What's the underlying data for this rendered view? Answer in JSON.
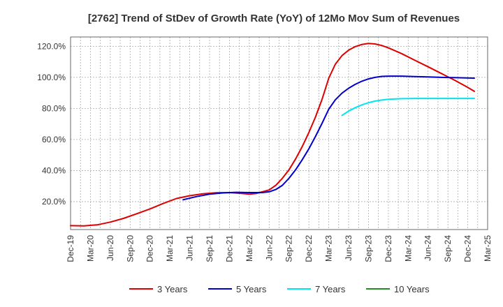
{
  "chart_data": {
    "type": "line",
    "title": "[2762]  Trend of StDev of Growth Rate (YoY) of 12Mo Mov Sum of Revenues",
    "xlabel": "",
    "ylabel": "",
    "ylim": [
      2,
      126
    ],
    "y_ticks": [
      {
        "value": 20,
        "label": "20.0%"
      },
      {
        "value": 40,
        "label": "40.0%"
      },
      {
        "value": 60,
        "label": "60.0%"
      },
      {
        "value": 80,
        "label": "80.0%"
      },
      {
        "value": 100,
        "label": "100.0%"
      },
      {
        "value": 120,
        "label": "120.0%"
      }
    ],
    "x_range": [
      0,
      75
    ],
    "x_ticks": [
      {
        "value": 0,
        "label": "Dec-19"
      },
      {
        "value": 3,
        "label": "Mar-20"
      },
      {
        "value": 6,
        "label": "Jun-20"
      },
      {
        "value": 9,
        "label": "Sep-20"
      },
      {
        "value": 12,
        "label": "Dec-20"
      },
      {
        "value": 15,
        "label": "Mar-21"
      },
      {
        "value": 18,
        "label": "Jun-21"
      },
      {
        "value": 21,
        "label": "Sep-21"
      },
      {
        "value": 24,
        "label": "Dec-21"
      },
      {
        "value": 27,
        "label": "Mar-22"
      },
      {
        "value": 30,
        "label": "Jun-22"
      },
      {
        "value": 33,
        "label": "Sep-22"
      },
      {
        "value": 36,
        "label": "Dec-22"
      },
      {
        "value": 39,
        "label": "Mar-23"
      },
      {
        "value": 42,
        "label": "Jun-23"
      },
      {
        "value": 45,
        "label": "Sep-23"
      },
      {
        "value": 48,
        "label": "Dec-23"
      },
      {
        "value": 51,
        "label": "Mar-24"
      },
      {
        "value": 54,
        "label": "Jun-24"
      },
      {
        "value": 57,
        "label": "Sep-24"
      },
      {
        "value": 60,
        "label": "Dec-24"
      },
      {
        "value": 63,
        "label": "Mar-25"
      }
    ],
    "grid": true,
    "legend_position": "bottom",
    "series": [
      {
        "name": "3 Years",
        "color": "#dd0000",
        "points": [
          [
            0,
            4.5
          ],
          [
            2,
            4.4
          ],
          [
            4,
            5.0
          ],
          [
            6,
            6.8
          ],
          [
            8,
            9.2
          ],
          [
            10,
            12.2
          ],
          [
            12,
            15.3
          ],
          [
            14,
            18.8
          ],
          [
            16,
            22.0
          ],
          [
            18,
            23.8
          ],
          [
            20,
            25.0
          ],
          [
            22,
            25.7
          ],
          [
            24,
            25.8
          ],
          [
            26,
            25.2
          ],
          [
            27,
            24.8
          ],
          [
            28,
            25.2
          ],
          [
            30,
            27.5
          ],
          [
            31,
            30.5
          ],
          [
            32,
            35.0
          ],
          [
            33,
            40.5
          ],
          [
            34,
            47.5
          ],
          [
            35,
            55.5
          ],
          [
            36,
            64.5
          ],
          [
            37,
            74.5
          ],
          [
            38,
            86.0
          ],
          [
            39,
            99.5
          ],
          [
            40,
            108.5
          ],
          [
            41,
            114.0
          ],
          [
            42,
            117.5
          ],
          [
            43,
            119.8
          ],
          [
            44,
            121.2
          ],
          [
            45,
            121.8
          ],
          [
            46,
            121.5
          ],
          [
            47,
            120.5
          ],
          [
            48,
            119.0
          ],
          [
            50,
            115.3
          ],
          [
            52,
            111.0
          ],
          [
            54,
            106.8
          ],
          [
            56,
            102.5
          ],
          [
            58,
            98.2
          ],
          [
            60,
            93.5
          ],
          [
            61,
            91.0
          ]
        ]
      },
      {
        "name": "5 Years",
        "color": "#0000cc",
        "points": [
          [
            17,
            21.2
          ],
          [
            19,
            23.2
          ],
          [
            21,
            24.8
          ],
          [
            23,
            25.6
          ],
          [
            25,
            26.0
          ],
          [
            27,
            25.8
          ],
          [
            29,
            25.8
          ],
          [
            30,
            26.3
          ],
          [
            31,
            27.8
          ],
          [
            32,
            30.5
          ],
          [
            33,
            35.0
          ],
          [
            34,
            40.5
          ],
          [
            35,
            47.0
          ],
          [
            36,
            54.0
          ],
          [
            37,
            62.0
          ],
          [
            38,
            70.5
          ],
          [
            39,
            79.5
          ],
          [
            40,
            85.5
          ],
          [
            41,
            89.8
          ],
          [
            42,
            93.0
          ],
          [
            43,
            95.5
          ],
          [
            44,
            97.5
          ],
          [
            45,
            99.0
          ],
          [
            46,
            100.0
          ],
          [
            47,
            100.6
          ],
          [
            48,
            100.8
          ],
          [
            50,
            100.8
          ],
          [
            52,
            100.5
          ],
          [
            54,
            100.3
          ],
          [
            56,
            100.0
          ],
          [
            58,
            99.8
          ],
          [
            60,
            99.6
          ],
          [
            61,
            99.5
          ]
        ]
      },
      {
        "name": "7 Years",
        "color": "#00e5ee",
        "points": [
          [
            41,
            75.5
          ],
          [
            42,
            78.3
          ],
          [
            43,
            80.5
          ],
          [
            44,
            82.3
          ],
          [
            45,
            83.7
          ],
          [
            46,
            84.7
          ],
          [
            47,
            85.4
          ],
          [
            48,
            85.9
          ],
          [
            50,
            86.3
          ],
          [
            52,
            86.4
          ],
          [
            55,
            86.4
          ],
          [
            58,
            86.4
          ],
          [
            61,
            86.4
          ]
        ]
      },
      {
        "name": "10 Years",
        "color": "#228b22",
        "points": []
      }
    ]
  }
}
